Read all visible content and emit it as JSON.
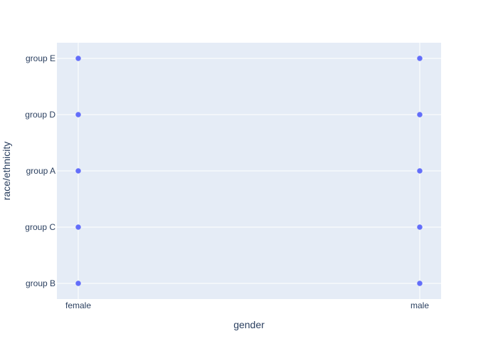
{
  "chart_data": {
    "type": "scatter",
    "title": "",
    "xlabel": "gender",
    "ylabel": "race/ethnicity",
    "x_categories": [
      "female",
      "male"
    ],
    "y_categories": [
      "group B",
      "group C",
      "group A",
      "group D",
      "group E"
    ],
    "points": [
      {
        "x": "female",
        "y": "group B"
      },
      {
        "x": "female",
        "y": "group C"
      },
      {
        "x": "female",
        "y": "group A"
      },
      {
        "x": "female",
        "y": "group D"
      },
      {
        "x": "female",
        "y": "group E"
      },
      {
        "x": "male",
        "y": "group B"
      },
      {
        "x": "male",
        "y": "group C"
      },
      {
        "x": "male",
        "y": "group A"
      },
      {
        "x": "male",
        "y": "group D"
      },
      {
        "x": "male",
        "y": "group E"
      }
    ],
    "grid": true,
    "colors": {
      "plot_background": "#e5ecf6",
      "gridline": "#ffffff",
      "marker": "#636efa",
      "text": "#2a3f5f"
    }
  }
}
